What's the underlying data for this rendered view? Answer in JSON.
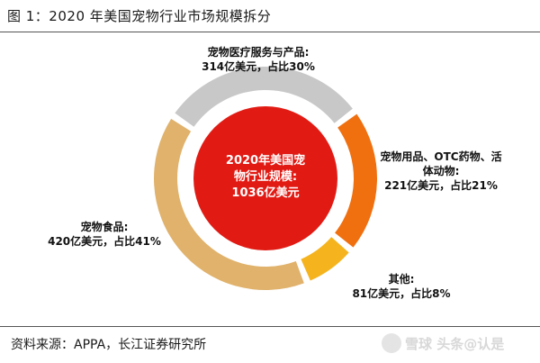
{
  "figure": {
    "title": "图 1：2020 年美国宠物行业市场规模拆分",
    "source": "资料来源：APPA，长江证券研究所",
    "watermark": "雪球 头条@认是"
  },
  "chart_data": {
    "type": "pie",
    "title": "2020 年美国宠物行业市场规模拆分",
    "unit": "亿美元",
    "total": 1036,
    "center_label": [
      "2020年美国宠",
      "物行业规模:",
      "1036亿美元"
    ],
    "slices": [
      {
        "name": "宠物医疗服务与产品",
        "value": 314,
        "percent": 30,
        "color": "#c8c8c8",
        "label": [
          "宠物医疗服务与产品:",
          "314亿美元，占比30%"
        ]
      },
      {
        "name": "宠物用品、OTC药物、活体动物",
        "value": 221,
        "percent": 21,
        "color": "#f07010",
        "label": [
          "宠物用品、OTC药物、活",
          "体动物:",
          "221亿美元，占比21%"
        ]
      },
      {
        "name": "其他",
        "value": 81,
        "percent": 8,
        "color": "#f5b41e",
        "label": [
          "其他:",
          "81亿美元，占比8%"
        ]
      },
      {
        "name": "宠物食品",
        "value": 420,
        "percent": 41,
        "color": "#e0b26c",
        "label": [
          "宠物食品:",
          "420亿美元，占比41%"
        ]
      }
    ],
    "center_color": "#e11b14"
  }
}
